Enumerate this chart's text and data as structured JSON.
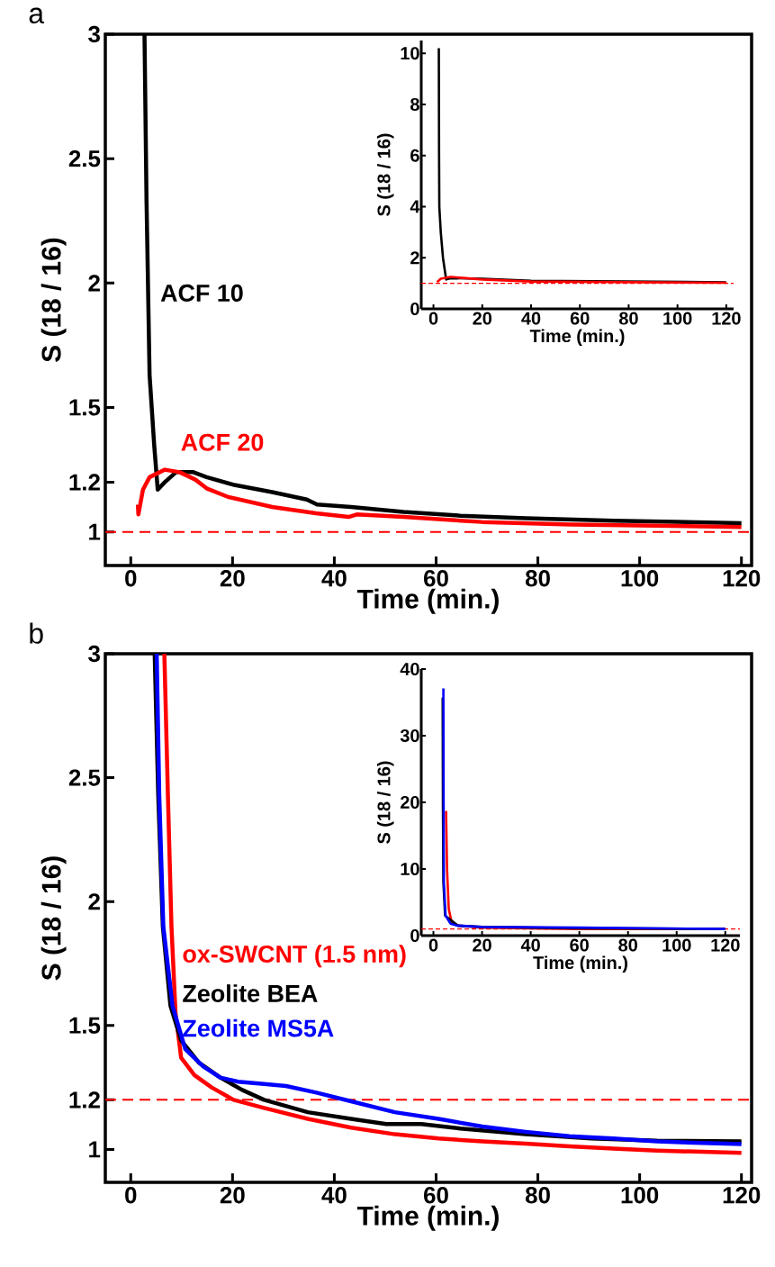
{
  "chart_data": [
    {
      "type": "line",
      "xlabel": "Time (min.)",
      "ylabel": "S (18 / 16)",
      "annotations": [
        "a"
      ],
      "xlim": [
        -5,
        122
      ],
      "ylim": [
        0.865,
        3
      ],
      "xticks": [
        0,
        20,
        40,
        60,
        80,
        100,
        120
      ],
      "yticks": [
        1,
        1.2,
        1.5,
        2,
        2.5,
        3
      ],
      "ref_lines": [
        {
          "axis": "y",
          "value": 1,
          "color": "#ff0000",
          "line_style": "dashed"
        }
      ],
      "series": [
        {
          "name": "ACF 10",
          "color": "#000000",
          "x": [
            2.7,
            3.1,
            3.7,
            4.6,
            5.3,
            6.7,
            8.9,
            12.3,
            14.9,
            20.1,
            27.8,
            34.6,
            36.6,
            43.3,
            53.6,
            64.8,
            77.7,
            94.9,
            120
          ],
          "values": [
            3.0,
            2.33,
            1.63,
            1.35,
            1.17,
            1.2,
            1.24,
            1.24,
            1.22,
            1.19,
            1.16,
            1.13,
            1.11,
            1.1,
            1.08,
            1.065,
            1.055,
            1.045,
            1.035
          ]
        },
        {
          "name": "ACF 20",
          "color": "#ff0000",
          "x": [
            1.4,
            1.5,
            2.4,
            3.7,
            6.7,
            9.6,
            12.7,
            14.9,
            19.2,
            27.8,
            36.4,
            42.8,
            44.4,
            53.6,
            69,
            86.6,
            120
          ],
          "values": [
            1.11,
            1.07,
            1.17,
            1.22,
            1.25,
            1.24,
            1.21,
            1.175,
            1.14,
            1.1,
            1.075,
            1.06,
            1.07,
            1.06,
            1.04,
            1.03,
            1.02
          ]
        }
      ]
    },
    {
      "type": "line",
      "xlabel": "Time (min.)",
      "ylabel": "S (18 / 16)",
      "xlim": [
        -5,
        123
      ],
      "ylim": [
        0,
        10.5
      ],
      "xticks": [
        0,
        20,
        40,
        60,
        80,
        100,
        120
      ],
      "yticks": [
        0,
        2,
        4,
        6,
        8,
        10
      ],
      "ref_lines": [
        {
          "axis": "y",
          "value": 1,
          "color": "#ff0000",
          "line_style": "dashed"
        }
      ],
      "series": [
        {
          "color": "#000000",
          "x": [
            2.2,
            2.3,
            2.4,
            3.0,
            3.9,
            5.2,
            7,
            20,
            40,
            60,
            120
          ],
          "values": [
            10.2,
            6,
            4,
            3,
            2.0,
            1.15,
            1.2,
            1.18,
            1.1,
            null,
            1.04
          ]
        },
        {
          "color": "#ff0000",
          "x": [
            1.5,
            3,
            7,
            20,
            40,
            120
          ],
          "values": [
            1.05,
            1.18,
            1.25,
            1.15,
            1.07,
            1.02
          ]
        }
      ]
    },
    {
      "type": "line",
      "xlabel": "Time (min.)",
      "ylabel": "S (18 / 16)",
      "annotations": [
        "b"
      ],
      "xlim": [
        -5,
        122
      ],
      "ylim": [
        0.867,
        3
      ],
      "xticks": [
        0,
        20,
        40,
        60,
        80,
        100,
        120
      ],
      "yticks": [
        1,
        1.2,
        1.5,
        2,
        2.5,
        3
      ],
      "ref_lines": [
        {
          "axis": "y",
          "value": 1.2,
          "color": "#ff0000",
          "line_style": "dashed"
        }
      ],
      "series": [
        {
          "name": "ox-SWCNT (1.5 nm)",
          "color": "#ff0000",
          "x": [
            6.6,
            7.3,
            8.0,
            8.8,
            9.9,
            12.5,
            15.9,
            20.2,
            26.2,
            34.8,
            43.3,
            51.9,
            60.5,
            69.1,
            77.6,
            86.2,
            94.8,
            103.4,
            120
          ],
          "values": [
            3.0,
            2.43,
            1.9,
            1.55,
            1.37,
            1.3,
            1.25,
            1.2,
            1.167,
            1.123,
            1.088,
            1.061,
            1.044,
            1.032,
            1.023,
            1.012,
            1.003,
            0.995,
            0.986
          ]
        },
        {
          "name": "Zeolite BEA",
          "color": "#000000",
          "x": [
            4.7,
            5.4,
            6.3,
            7.8,
            9.9,
            13.4,
            17.6,
            21.9,
            26.2,
            34.8,
            43.3,
            50.2,
            57.1,
            64.8,
            77.6,
            90.5,
            103.4,
            120
          ],
          "values": [
            3.0,
            2.43,
            1.9,
            1.58,
            1.44,
            1.35,
            1.29,
            1.24,
            1.2,
            1.15,
            1.123,
            1.102,
            1.102,
            1.084,
            1.061,
            1.044,
            1.035,
            1.032
          ]
        },
        {
          "name": "Zeolite MS5A",
          "color": "#0000ff",
          "x": [
            5.1,
            5.6,
            6.4,
            8.2,
            10.7,
            14.2,
            17.6,
            21.1,
            26.2,
            30.5,
            36.5,
            43.3,
            51.9,
            60.5,
            69.1,
            77.6,
            86.2,
            94.8,
            103.4,
            120
          ],
          "values": [
            3.0,
            2.43,
            1.9,
            1.58,
            1.405,
            1.335,
            1.29,
            1.273,
            1.264,
            1.256,
            1.229,
            1.194,
            1.15,
            1.123,
            1.092,
            1.071,
            1.053,
            1.044,
            1.032,
            1.021
          ]
        }
      ]
    },
    {
      "type": "line",
      "xlabel": "Time (min.)",
      "ylabel": "S (18 / 16)",
      "xlim": [
        -5,
        126
      ],
      "ylim": [
        0,
        40
      ],
      "xticks": [
        0,
        20,
        40,
        60,
        80,
        100,
        120
      ],
      "yticks": [
        0,
        10,
        20,
        30,
        40
      ],
      "ref_lines": [
        {
          "axis": "y",
          "value": 1,
          "color": "#ff0000",
          "line_style": "dashed"
        }
      ],
      "series": [
        {
          "color": "#ff0000",
          "x": [
            5.2,
            5.6,
            6.3,
            7.5,
            10,
            20,
            60,
            120
          ],
          "values": [
            18.7,
            10,
            4,
            2,
            1.5,
            1.2,
            1.0,
            1.0
          ]
        },
        {
          "color": "#000000",
          "x": [
            3.8,
            3.9,
            4.1,
            4.8,
            7,
            10,
            20,
            60,
            120
          ],
          "values": [
            35.7,
            20,
            8,
            3,
            null,
            1.5,
            1.3,
            1.1,
            1.0
          ]
        },
        {
          "color": "#0000ff",
          "x": [
            4.1,
            4.2,
            4.3,
            5,
            7,
            10,
            20,
            60,
            120
          ],
          "values": [
            37.1,
            20,
            8,
            3,
            1.8,
            1.5,
            1.3,
            1.2,
            1.0
          ]
        }
      ]
    }
  ]
}
